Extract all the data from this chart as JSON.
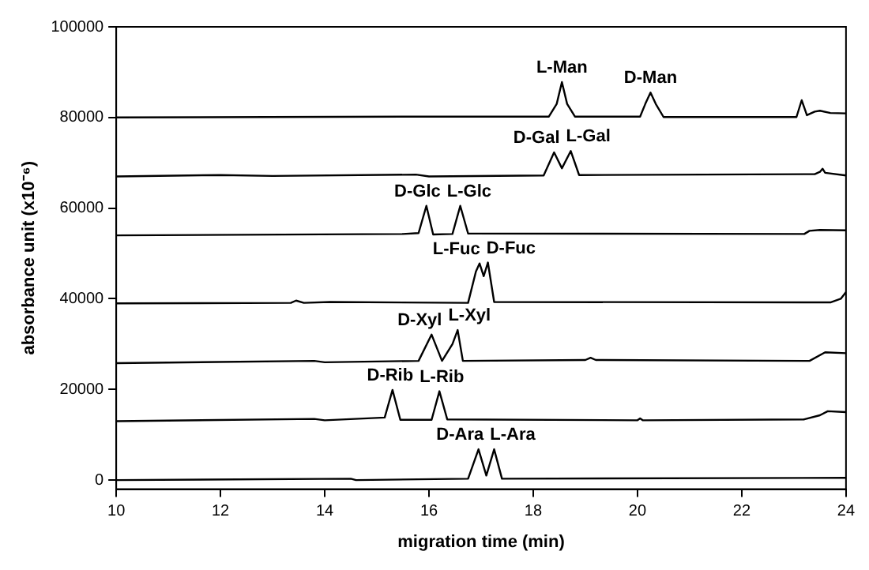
{
  "chart_data": {
    "type": "line",
    "xlabel": "migration time (min)",
    "ylabel": "absorbance unit (x10⁻⁶)",
    "xlim": [
      10,
      24
    ],
    "xticks": [
      10,
      12,
      14,
      16,
      18,
      20,
      22,
      24
    ],
    "ylim": [
      -2000,
      100000
    ],
    "yticks": [
      0,
      20000,
      40000,
      60000,
      80000,
      100000
    ],
    "grid": false,
    "legend": false,
    "marker": "none",
    "line_style": "solid",
    "series": [
      {
        "color": "#000000",
        "x": [
          10,
          15.8,
          18.3,
          18.45,
          18.55,
          18.65,
          18.8,
          20.05,
          20.15,
          20.25,
          20.35,
          20.5,
          23.05,
          23.15,
          23.25,
          23.4,
          23.5,
          23.7,
          24
        ],
        "values": [
          80000,
          80200,
          80200,
          83000,
          87800,
          83000,
          80200,
          80200,
          83000,
          85500,
          83000,
          80100,
          80100,
          83800,
          80500,
          81300,
          81500,
          81000,
          80900
        ]
      },
      {
        "color": "#000000",
        "x": [
          10,
          12,
          13,
          15.75,
          16,
          18.2,
          18.4,
          18.55,
          18.72,
          18.88,
          23.4,
          23.5,
          23.55,
          23.6,
          24
        ],
        "values": [
          67000,
          67300,
          67100,
          67400,
          67000,
          67200,
          72300,
          68800,
          72600,
          67300,
          67500,
          68000,
          68700,
          67800,
          67200
        ]
      },
      {
        "color": "#000000",
        "x": [
          10,
          15.5,
          15.8,
          15.95,
          16.08,
          16.45,
          16.6,
          16.75,
          23.2,
          23.3,
          23.5,
          24
        ],
        "values": [
          54000,
          54300,
          54500,
          60500,
          54200,
          54300,
          60500,
          54400,
          54300,
          55000,
          55200,
          55100
        ]
      },
      {
        "color": "#000000",
        "x": [
          10,
          13.35,
          13.45,
          13.6,
          14.1,
          16.75,
          16.9,
          16.97,
          17.05,
          17.13,
          17.25,
          23.7,
          23.9,
          24
        ],
        "values": [
          39000,
          39100,
          39600,
          39100,
          39300,
          39100,
          46000,
          47800,
          45000,
          48000,
          39300,
          39200,
          40000,
          41500
        ]
      },
      {
        "color": "#000000",
        "x": [
          10,
          13.8,
          14,
          15.8,
          16.05,
          16.25,
          16.45,
          16.55,
          16.65,
          19,
          19.1,
          19.2,
          23.3,
          23.6,
          24
        ],
        "values": [
          25800,
          26300,
          26000,
          26300,
          32100,
          26300,
          30000,
          33100,
          26300,
          26500,
          27000,
          26500,
          26300,
          28200,
          28000
        ]
      },
      {
        "color": "#000000",
        "x": [
          10,
          13.8,
          14,
          15.15,
          15.3,
          15.45,
          16.05,
          16.2,
          16.35,
          20,
          20.05,
          20.1,
          23.2,
          23.5,
          23.65,
          24
        ],
        "values": [
          13000,
          13500,
          13200,
          13800,
          19900,
          13300,
          13300,
          19600,
          13400,
          13200,
          13600,
          13200,
          13400,
          14300,
          15200,
          15000
        ]
      },
      {
        "color": "#000000",
        "x": [
          10,
          14.5,
          14.6,
          16.75,
          16.95,
          17.1,
          17.25,
          17.4,
          24
        ],
        "values": [
          0,
          300,
          0,
          300,
          6800,
          1000,
          6800,
          300,
          500
        ]
      }
    ],
    "annotations": [
      {
        "text": "L-Man",
        "x": 18.55,
        "y": 87800
      },
      {
        "text": "D-Man",
        "x": 20.25,
        "y": 85500
      },
      {
        "text": "D-Gal",
        "x": 18.4,
        "y": 72300
      },
      {
        "text": "L-Gal",
        "x": 18.72,
        "y": 72600
      },
      {
        "text": "D-Glc",
        "x": 15.95,
        "y": 60500
      },
      {
        "text": "L-Glc",
        "x": 16.6,
        "y": 60500
      },
      {
        "text": "L-Fuc",
        "x": 16.97,
        "y": 47800
      },
      {
        "text": "D-Fuc",
        "x": 17.13,
        "y": 48000
      },
      {
        "text": "D-Xyl",
        "x": 16.05,
        "y": 32100
      },
      {
        "text": "L-Xyl",
        "x": 16.55,
        "y": 33100
      },
      {
        "text": "D-Rib",
        "x": 15.3,
        "y": 19900
      },
      {
        "text": "L-Rib",
        "x": 16.2,
        "y": 19600
      },
      {
        "text": "D-Ara",
        "x": 16.95,
        "y": 6800
      },
      {
        "text": "L-Ara",
        "x": 17.25,
        "y": 6800
      }
    ]
  }
}
